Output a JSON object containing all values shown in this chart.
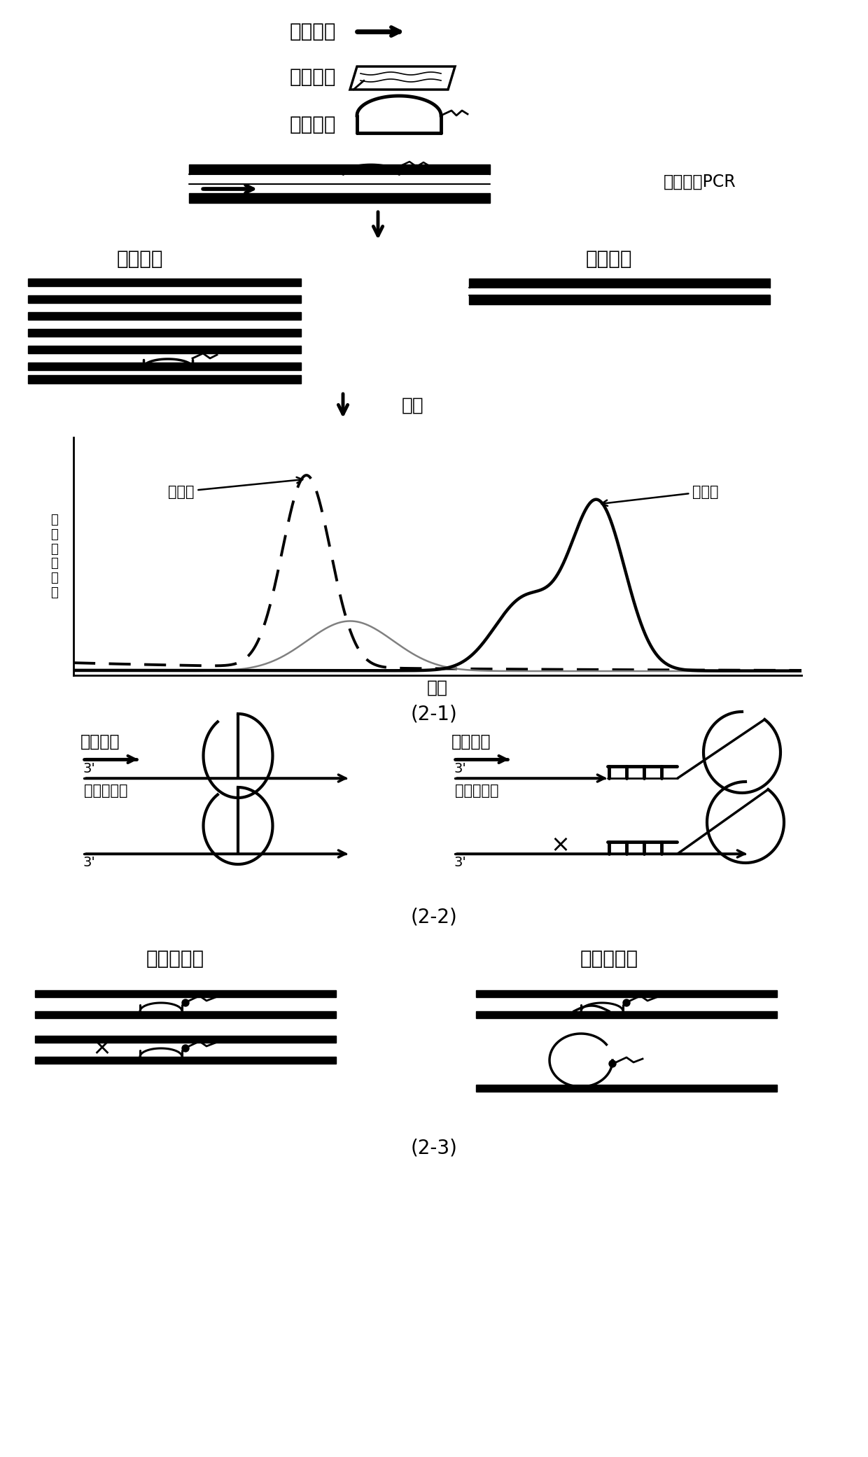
{
  "labels_row1": [
    "上游引物",
    "下游引物",
    "分子信标"
  ],
  "pcr_label": "非对称性PCR",
  "single_chain_label": "单链产物",
  "double_chain_label": "双链产物",
  "melt_label": "熔解",
  "ylabel_melt": "荧\n光\n变\n化\n速\n率",
  "xlabel_melt": "温度",
  "melt_peak_label1": "熔解峰",
  "melt_peak_label2": "熔解峰",
  "fig_label1": "(2-1)",
  "fig_label2": "(2-2)",
  "fig_label3": "(2-3)",
  "upstream_left": "上游引物",
  "upstream_right": "上游引物",
  "mutant_tpl": "突变型模板",
  "wildtype_tpl": "野生型模板",
  "wildtype_tpl2": "野生型模板",
  "mutant_tpl2": "突变型模板",
  "three_prime": "3'",
  "bg_color": "#ffffff"
}
